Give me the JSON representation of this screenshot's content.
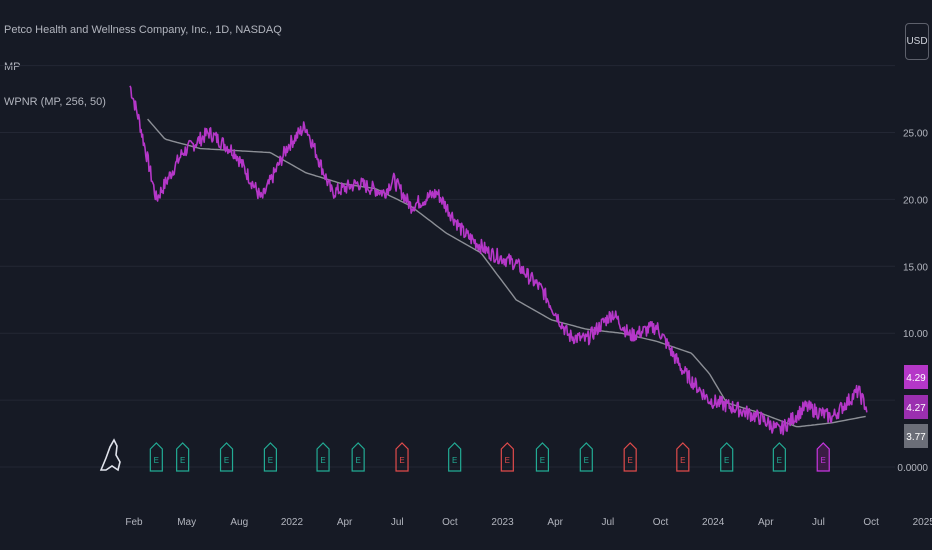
{
  "header": {
    "symbol_line": "Petco Health and Wellness Company, Inc., 1D, NASDAQ",
    "series_line": "MP",
    "indicator_line": "WPNR (MP, 256, 50)",
    "currency": "USD"
  },
  "colors": {
    "background": "#161a25",
    "price": "#b537c8",
    "indicator": "#8c8f96",
    "grid": "#232734",
    "earnings": "#22ab94",
    "dividend_red": "#e04b4b",
    "future_event": "#c735e0"
  },
  "chart_data": {
    "type": "line",
    "title": "Petco Health and Wellness Company, Inc., 1D, NASDAQ",
    "y_ticks": [
      "25.00",
      "20.00",
      "15.00",
      "10.00",
      "0.0000"
    ],
    "x_ticks": [
      "Feb",
      "May",
      "Aug",
      "2022",
      "Apr",
      "Jul",
      "Oct",
      "2023",
      "Apr",
      "Jul",
      "Oct",
      "2024",
      "Apr",
      "Jul",
      "Oct",
      "2025"
    ],
    "ylim": [
      0,
      30
    ],
    "grid": true,
    "series": [
      {
        "name": "MP",
        "t": [
          0,
          0.5,
          1.5,
          3,
          4.5,
          6,
          7.5,
          9,
          10,
          11.5,
          13,
          14.5,
          15,
          16,
          17.5,
          19,
          20.5,
          22,
          23.5,
          25,
          26,
          27.5,
          28.5,
          30,
          31.5,
          33,
          34.5,
          36,
          37,
          38.5,
          40,
          41.5,
          42
        ],
        "values": [
          28.5,
          26,
          20,
          23.5,
          25,
          23.5,
          20,
          24,
          25.5,
          20.5,
          21.2,
          20.5,
          21.5,
          19.5,
          20.5,
          17.5,
          16,
          15.2,
          13.2,
          9.8,
          9.5,
          11.5,
          9.8,
          10.5,
          7.2,
          5.0,
          4.4,
          3.6,
          2.7,
          4.5,
          3.7,
          5.7,
          4.3
        ]
      },
      {
        "name": "WPNR (MP, 256, 50)",
        "t": [
          1,
          2,
          4,
          8,
          10,
          12,
          14,
          16,
          18,
          20,
          22,
          24,
          26,
          28,
          30,
          32,
          33,
          34,
          36,
          38,
          40,
          42
        ],
        "values": [
          26,
          24.5,
          23.8,
          23.5,
          22,
          21.2,
          20.8,
          19.5,
          17.5,
          16,
          12.5,
          11,
          10.3,
          10.0,
          9.4,
          8.5,
          7.0,
          4.8,
          4.0,
          3.0,
          3.3,
          3.8
        ]
      }
    ],
    "last_values": [
      {
        "label": "4.29",
        "color": "#b537c8"
      },
      {
        "label": "4.27",
        "color": "#9b2fb0"
      },
      {
        "label": "3.77",
        "color": "#6b6e78"
      }
    ],
    "events": [
      {
        "t": 1.5,
        "label": "E",
        "color": "#22ab94"
      },
      {
        "t": 3.0,
        "label": "E",
        "color": "#22ab94"
      },
      {
        "t": 5.5,
        "label": "E",
        "color": "#22ab94"
      },
      {
        "t": 8.0,
        "label": "E",
        "color": "#22ab94"
      },
      {
        "t": 11.0,
        "label": "E",
        "color": "#22ab94"
      },
      {
        "t": 13.0,
        "label": "E",
        "color": "#22ab94"
      },
      {
        "t": 15.5,
        "label": "E",
        "color": "#e04b4b"
      },
      {
        "t": 18.5,
        "label": "E",
        "color": "#22ab94"
      },
      {
        "t": 21.5,
        "label": "E",
        "color": "#e04b4b"
      },
      {
        "t": 23.5,
        "label": "E",
        "color": "#22ab94"
      },
      {
        "t": 26.0,
        "label": "E",
        "color": "#22ab94"
      },
      {
        "t": 28.5,
        "label": "E",
        "color": "#e04b4b"
      },
      {
        "t": 31.5,
        "label": "E",
        "color": "#e04b4b"
      },
      {
        "t": 34.0,
        "label": "E",
        "color": "#22ab94"
      },
      {
        "t": 37.0,
        "label": "E",
        "color": "#22ab94"
      },
      {
        "t": 39.5,
        "label": "E",
        "color": "#c735e0"
      }
    ],
    "x_tick_t": [
      0,
      3,
      6,
      9,
      12,
      15,
      18,
      21,
      24,
      27,
      30,
      33,
      36,
      39,
      42,
      45
    ]
  }
}
